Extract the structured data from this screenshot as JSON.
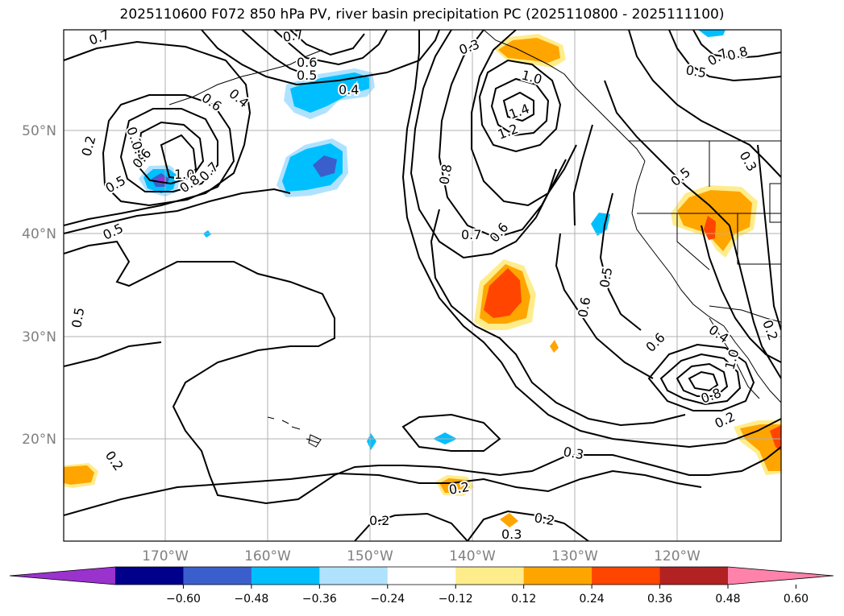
{
  "title": "2025110600 F072 850 hPa PV, river basin precipitation PC (2025110800 - 2025111100)",
  "lat_labels": [
    "50°N",
    "40°N",
    "30°N",
    "20°N"
  ],
  "lon_labels": [
    "170°W",
    "160°W",
    "150°W",
    "140°W",
    "130°W",
    "120°W"
  ],
  "colorbar": {
    "ticks": [
      "−0.60",
      "−0.48",
      "−0.36",
      "−0.24",
      "−0.12",
      "0.12",
      "0.24",
      "0.36",
      "0.48",
      "0.60"
    ],
    "colors": [
      "#9a32cd",
      "#00008b",
      "#3a5fcd",
      "#00bfff",
      "#b0e2ff",
      "#ffffff",
      "#ffec8b",
      "#ffa500",
      "#ff4500",
      "#b22222",
      "#ff82ab"
    ]
  },
  "contour_labels": {
    "c_07_a": "0.7",
    "c_07_b": "0.7",
    "c_06_a": "0.6",
    "c_05_a": "0.5",
    "c_04_a": "0.4",
    "c_06_b": "0.6",
    "c_04_b": "0.4",
    "c_03_a": "0.3",
    "c_04_c": "0.4",
    "c_02_a": "0.2",
    "c_06_c": "0.6",
    "c_05_b": "0.5",
    "c_10_a": "1.0",
    "c_08_a": "0.8",
    "c_07_c": "0.7",
    "c_05_c": "0.5",
    "c_05_d": "0.5",
    "c_03_b": "0.3",
    "c_10_b": "1.0",
    "c_14_a": "1.4",
    "c_12_a": "1.2",
    "c_08_b": "0.8",
    "c_07_d": "0.7",
    "c_06_d": "0.6",
    "c_05_e": "0.5",
    "c_06_e": "0.6",
    "c_06_f": "0.6",
    "c_04_d": "0.4",
    "c_10_c": "1.0",
    "c_08_c": "0.8",
    "c_02_b": "0.2",
    "c_03_c": "0.3",
    "c_02_c": "0.2",
    "c_02_d": "0.2",
    "c_02_e": "0.2",
    "c_03_d": "0.3",
    "c_02_f": "0.2",
    "c_08_d": "0.8",
    "c_05_f": "0.5",
    "c_07_e": "0.7",
    "c_05_g": "0.5",
    "c_03_e": "0.3",
    "c_02_g": "0.2"
  }
}
